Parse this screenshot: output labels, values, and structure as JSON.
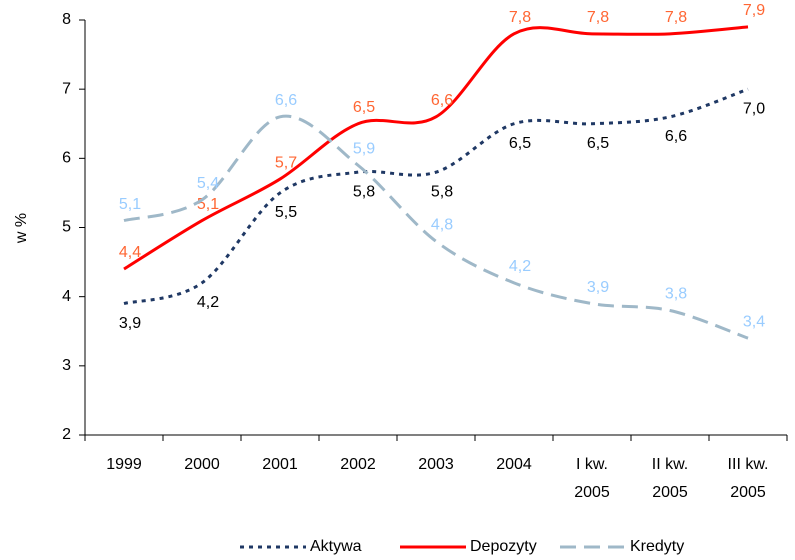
{
  "chart_data": {
    "type": "line",
    "y_label": "w %",
    "categories": [
      "1999",
      "2000",
      "2001",
      "2002",
      "2003",
      "2004",
      "I kw.\n2005",
      "II kw.\n2005",
      "III kw.\n2005"
    ],
    "series": [
      {
        "name": "Aktywa",
        "color": "#1f3864",
        "label_color": "#000000",
        "dash": "dot",
        "values": [
          3.9,
          4.2,
          5.5,
          5.8,
          5.8,
          6.5,
          6.5,
          6.6,
          7.0
        ],
        "value_labels": [
          "3,9",
          "4,2",
          "5,5",
          "5,8",
          "5,8",
          "6,5",
          "6,5",
          "6,6",
          "7,0"
        ]
      },
      {
        "name": "Depozyty",
        "color": "#ff0000",
        "label_color": "#ff6633",
        "dash": "solid",
        "values": [
          4.4,
          5.1,
          5.7,
          6.5,
          6.6,
          7.8,
          7.8,
          7.8,
          7.9
        ],
        "value_labels": [
          "4,4",
          "5,1",
          "5,7",
          "6,5",
          "6,6",
          "7,8",
          "7,8",
          "7,8",
          "7,9"
        ]
      },
      {
        "name": "Kredyty",
        "color": "#9fb8c8",
        "label_color": "#99ccff",
        "dash": "dash",
        "values": [
          5.1,
          5.4,
          6.6,
          5.9,
          4.8,
          4.2,
          3.9,
          3.8,
          3.4
        ],
        "value_labels": [
          "5,1",
          "5,4",
          "6,6",
          "5,9",
          "4,8",
          "4,2",
          "3,9",
          "3,8",
          "3,4"
        ]
      }
    ],
    "ylim": [
      2,
      8
    ],
    "yticks": [
      2,
      3,
      4,
      5,
      6,
      7,
      8
    ],
    "grid": false,
    "legend": "bottom"
  }
}
